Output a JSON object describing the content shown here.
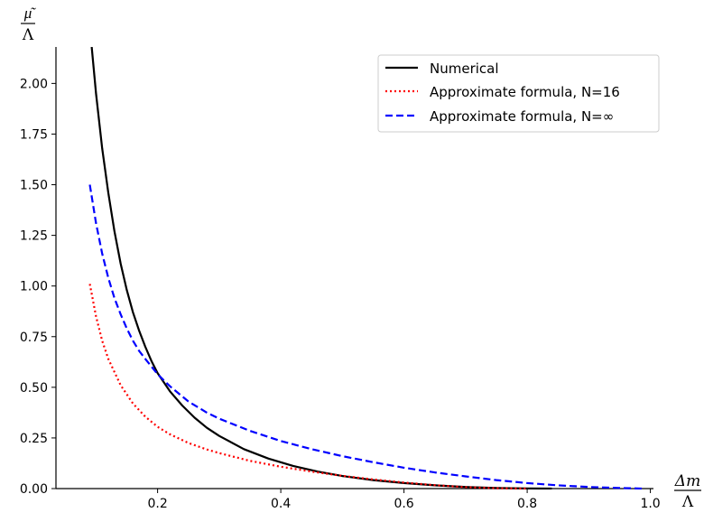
{
  "chart_data": {
    "type": "line",
    "title": "",
    "xlabel": {
      "numerator": "Δm",
      "denominator": "Λ"
    },
    "ylabel": {
      "numerator": "μ͂",
      "denominator": "Λ"
    },
    "xlim": [
      0.035,
      1.005
    ],
    "ylim": [
      0.0,
      2.18
    ],
    "xticks": [
      0.2,
      0.4,
      0.6,
      0.8,
      1.0
    ],
    "xtick_labels": [
      "0.2",
      "0.4",
      "0.6",
      "0.8",
      "1.0"
    ],
    "yticks": [
      0.0,
      0.25,
      0.5,
      0.75,
      1.0,
      1.25,
      1.5,
      1.75,
      2.0
    ],
    "ytick_labels": [
      "0.00",
      "0.25",
      "0.50",
      "0.75",
      "1.00",
      "1.25",
      "1.50",
      "1.75",
      "2.00"
    ],
    "grid": false,
    "legend_position": "top-right",
    "series": [
      {
        "name": "Numerical",
        "color": "#000000",
        "style": "solid",
        "x": [
          0.093,
          0.1,
          0.11,
          0.12,
          0.13,
          0.14,
          0.15,
          0.16,
          0.17,
          0.18,
          0.19,
          0.2,
          0.22,
          0.24,
          0.26,
          0.28,
          0.3,
          0.34,
          0.38,
          0.42,
          0.46,
          0.5,
          0.55,
          0.6,
          0.65,
          0.7,
          0.75,
          0.8,
          0.84
        ],
        "y": [
          2.18,
          1.95,
          1.68,
          1.46,
          1.27,
          1.11,
          0.98,
          0.87,
          0.78,
          0.7,
          0.63,
          0.57,
          0.48,
          0.41,
          0.35,
          0.3,
          0.26,
          0.195,
          0.148,
          0.112,
          0.084,
          0.062,
          0.042,
          0.027,
          0.016,
          0.008,
          0.003,
          0.001,
          0.0
        ]
      },
      {
        "name": "Approximate formula, N=16",
        "color": "#ff0000",
        "style": "dotted",
        "x": [
          0.09,
          0.1,
          0.11,
          0.12,
          0.14,
          0.16,
          0.18,
          0.2,
          0.22,
          0.25,
          0.28,
          0.3,
          0.35,
          0.4,
          0.45,
          0.5,
          0.55,
          0.6,
          0.65,
          0.7,
          0.75,
          0.8
        ],
        "y": [
          1.01,
          0.85,
          0.73,
          0.64,
          0.51,
          0.42,
          0.355,
          0.305,
          0.268,
          0.225,
          0.193,
          0.175,
          0.137,
          0.108,
          0.084,
          0.063,
          0.045,
          0.03,
          0.017,
          0.007,
          0.002,
          0.0
        ]
      },
      {
        "name": "Approximate formula, N=∞",
        "color": "#0000ff",
        "style": "dashed",
        "x": [
          0.09,
          0.1,
          0.11,
          0.12,
          0.13,
          0.14,
          0.15,
          0.16,
          0.17,
          0.18,
          0.2,
          0.22,
          0.25,
          0.28,
          0.3,
          0.35,
          0.4,
          0.45,
          0.5,
          0.55,
          0.6,
          0.65,
          0.7,
          0.75,
          0.8,
          0.85,
          0.9,
          0.95,
          0.99
        ],
        "y": [
          1.5,
          1.31,
          1.16,
          1.04,
          0.94,
          0.86,
          0.79,
          0.73,
          0.68,
          0.64,
          0.565,
          0.505,
          0.43,
          0.375,
          0.345,
          0.285,
          0.235,
          0.195,
          0.16,
          0.13,
          0.103,
          0.08,
          0.06,
          0.042,
          0.027,
          0.016,
          0.008,
          0.003,
          0.0
        ]
      }
    ]
  }
}
